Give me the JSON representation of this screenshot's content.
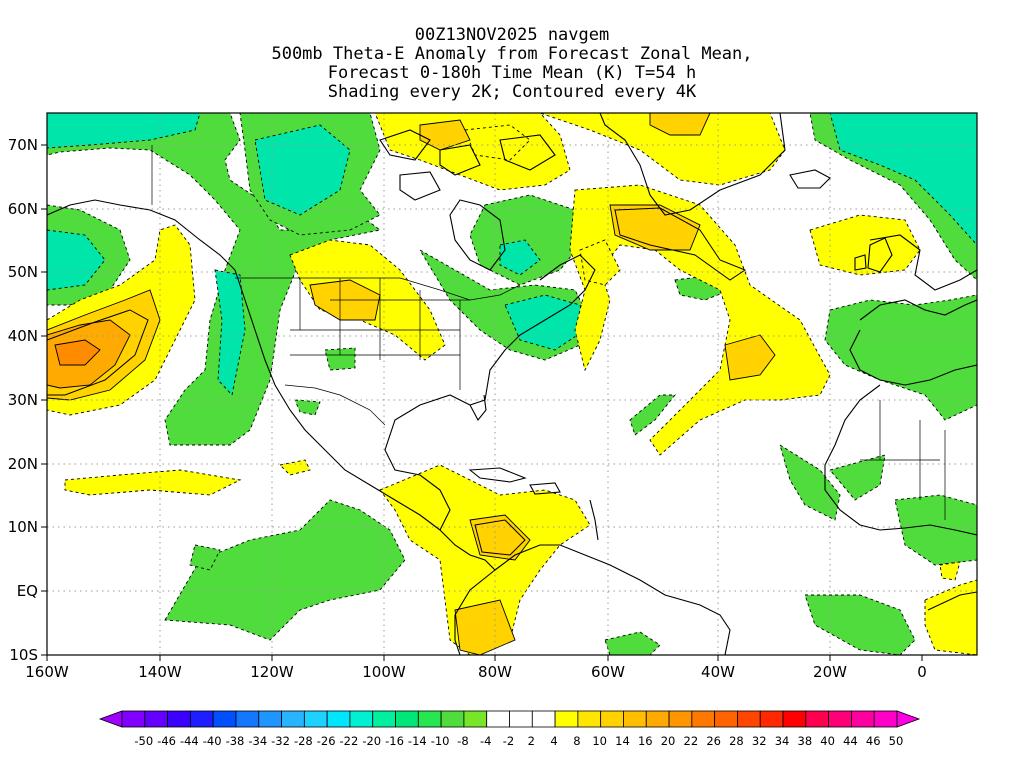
{
  "title": {
    "line1": "00Z13NOV2025 navgem",
    "line2": "500mb Theta-E Anomaly from Forecast Zonal Mean,",
    "line3": "Forecast 0-180h Time Mean (K) T=54 h",
    "line4": "Shading every 2K; Contoured every 4K"
  },
  "axes": {
    "lat_labels": [
      "70N",
      "60N",
      "50N",
      "40N",
      "30N",
      "20N",
      "10N",
      "EQ",
      "10S"
    ],
    "lon_labels": [
      "160W",
      "140W",
      "120W",
      "100W",
      "80W",
      "60W",
      "40W",
      "20W",
      "0"
    ]
  },
  "colorbar": {
    "labels": [
      "-50",
      "-46",
      "-44",
      "-40",
      "-38",
      "-34",
      "-32",
      "-28",
      "-26",
      "-22",
      "-20",
      "-16",
      "-14",
      "-10",
      "-8",
      "-4",
      "-2",
      "2",
      "4",
      "8",
      "10",
      "14",
      "16",
      "20",
      "22",
      "26",
      "28",
      "32",
      "34",
      "38",
      "40",
      "44",
      "46",
      "50"
    ],
    "colors": [
      "#a000ff",
      "#8200ff",
      "#6400ff",
      "#3c00ff",
      "#1e1eff",
      "#0050ff",
      "#1478ff",
      "#1e96ff",
      "#28b4ff",
      "#1ed2ff",
      "#00e6ff",
      "#00f0d2",
      "#00f0a0",
      "#00e678",
      "#28e650",
      "#50dc3c",
      "#78e628",
      "#ffffff",
      "#ffffff",
      "#ffffff",
      "#ffff00",
      "#ffe600",
      "#ffd200",
      "#ffbe00",
      "#ffaa00",
      "#ff9600",
      "#ff7800",
      "#ff6400",
      "#ff4600",
      "#ff2800",
      "#ff0000",
      "#ff0050",
      "#ff0078",
      "#ff00a0",
      "#ff00c8",
      "#ff00e6"
    ]
  },
  "colors": {
    "cold_green": "#50dc3c",
    "cold_teal": "#00e6aa",
    "warm_yellow": "#ffff00",
    "warm_gold": "#ffd200",
    "warm_orange": "#ffaa00",
    "warm_dark_orange": "#ff8c00"
  }
}
